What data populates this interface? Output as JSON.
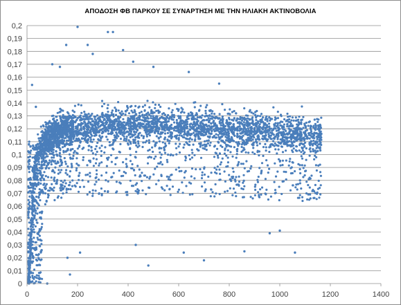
{
  "chart_data": {
    "type": "scatter",
    "title": "ΑΠΟΔΟΣΗ ΦΒ ΠΑΡΚΟΥ ΣΕ ΣΥΝΑΡΤΗΣΗ ΜΕ ΤΗΝ ΗΛΙΑΚΗ ΑΚΤΙΝΟΒΟΛΙΑ",
    "xlabel": "",
    "ylabel": "",
    "xlim": [
      0,
      1400
    ],
    "ylim": [
      0,
      0.2
    ],
    "grid": {
      "horizontal": true,
      "vertical": false
    },
    "legend": "none",
    "x_ticks": [
      "0",
      "200",
      "400",
      "600",
      "800",
      "1000",
      "1200",
      "1400"
    ],
    "y_ticks": [
      "0",
      "0,01",
      "0,02",
      "0,03",
      "0,04",
      "0,05",
      "0,06",
      "0,07",
      "0,08",
      "0,09",
      "0,1",
      "0,11",
      "0,12",
      "0,13",
      "0,14",
      "0,15",
      "0,16",
      "0,17",
      "0,18",
      "0,19",
      "0,2"
    ],
    "marker_color": "#4a7ebb",
    "series": [
      {
        "values": [
          [
            5,
            0.001
          ],
          [
            8,
            0.004
          ],
          [
            10,
            0.012
          ],
          [
            12,
            0.02
          ],
          [
            14,
            0.03
          ],
          [
            16,
            0.042
          ],
          [
            18,
            0.05
          ],
          [
            20,
            0.058
          ],
          [
            22,
            0.066
          ],
          [
            25,
            0.075
          ],
          [
            28,
            0.082
          ],
          [
            30,
            0.088
          ],
          [
            35,
            0.095
          ],
          [
            40,
            0.1
          ],
          [
            50,
            0.105
          ],
          [
            60,
            0.108
          ],
          [
            80,
            0.112
          ],
          [
            100,
            0.115
          ],
          [
            150,
            0.119
          ],
          [
            200,
            0.121
          ],
          [
            300,
            0.123
          ],
          [
            400,
            0.124
          ],
          [
            500,
            0.124
          ],
          [
            600,
            0.123
          ],
          [
            700,
            0.122
          ],
          [
            800,
            0.12
          ],
          [
            900,
            0.119
          ],
          [
            1000,
            0.117
          ],
          [
            1100,
            0.116
          ],
          [
            1160,
            0.115
          ],
          [
            20,
            0.154
          ],
          [
            35,
            0.137
          ],
          [
            80,
            0.0
          ],
          [
            100,
            0.17
          ],
          [
            130,
            0.168
          ],
          [
            155,
            0.185
          ],
          [
            160,
            0.02
          ],
          [
            170,
            0.007
          ],
          [
            200,
            0.199
          ],
          [
            210,
            0.024
          ],
          [
            240,
            0.185
          ],
          [
            260,
            0.178
          ],
          [
            320,
            0.195
          ],
          [
            340,
            0.195
          ],
          [
            380,
            0.181
          ],
          [
            420,
            0.172
          ],
          [
            430,
            0.03
          ],
          [
            480,
            0.014
          ],
          [
            500,
            0.168
          ],
          [
            560,
            0.081
          ],
          [
            620,
            0.024
          ],
          [
            640,
            0.164
          ],
          [
            700,
            0.018
          ],
          [
            760,
            0.155
          ],
          [
            860,
            0.025
          ],
          [
            960,
            0.039
          ],
          [
            1000,
            0.041
          ],
          [
            1060,
            0.024
          ],
          [
            1080,
            0.08
          ]
        ]
      }
    ]
  }
}
